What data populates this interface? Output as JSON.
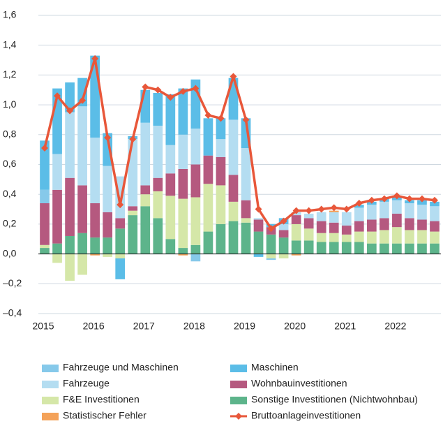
{
  "chart_data": {
    "type": "bar",
    "categories": [
      "2015",
      null,
      null,
      null,
      "2016",
      null,
      null,
      null,
      "2017",
      null,
      null,
      null,
      "2018",
      null,
      null,
      null,
      "2019",
      null,
      null,
      null,
      "2020",
      null,
      null,
      null,
      "2021",
      null,
      null,
      null,
      "2022",
      null,
      null,
      null
    ],
    "stacked": true,
    "series": [
      {
        "name": "Sonstige Investitionen (Nichtwohnbau)",
        "color": "#5db48b",
        "values": [
          0.04,
          0.07,
          0.12,
          0.14,
          0.11,
          0.11,
          0.17,
          0.26,
          0.32,
          0.24,
          0.1,
          0.04,
          0.06,
          0.15,
          0.2,
          0.22,
          0.21,
          0.15,
          0.13,
          0.11,
          0.09,
          0.09,
          0.08,
          0.08,
          0.08,
          0.08,
          0.07,
          0.07,
          0.07,
          0.07,
          0.07,
          0.07
        ]
      },
      {
        "name": "F&E Investitionen",
        "color": "#d5e7a8",
        "values": [
          0.02,
          -0.06,
          -0.18,
          -0.14,
          0,
          -0.02,
          -0.03,
          0.03,
          0.08,
          0.18,
          0.29,
          0.33,
          0.32,
          0.32,
          0.26,
          0.13,
          0.03,
          0,
          -0.03,
          -0.03,
          0.11,
          0.08,
          0.06,
          0.06,
          0.05,
          0.07,
          0.08,
          0.09,
          0.11,
          0.09,
          0.09,
          0.08
        ]
      },
      {
        "name": "Wohnbauinvestitionen",
        "color": "#b5597f",
        "values": [
          0.28,
          0.36,
          0.39,
          0.32,
          0.23,
          0.17,
          0.07,
          0.03,
          0.06,
          0.09,
          0.15,
          0.2,
          0.22,
          0.19,
          0.19,
          0.18,
          0.12,
          0.08,
          0.05,
          0.05,
          0.06,
          0.07,
          0.08,
          0.07,
          0.06,
          0.07,
          0.08,
          0.08,
          0.09,
          0.08,
          0.07,
          0.07
        ]
      },
      {
        "name": "Fahrzeuge",
        "color": "#b4ddf1",
        "values": [
          0,
          0.24,
          0.44,
          0.53,
          0.44,
          0.31,
          0.28,
          0.45,
          0.42,
          0.35,
          0.19,
          0.23,
          0.24,
          0,
          0.12,
          0.37,
          0.35,
          0.01,
          0,
          0.04,
          0.02,
          0.03,
          0.06,
          0.07,
          0.09,
          0.09,
          0.1,
          0.11,
          0.09,
          0.1,
          0.1,
          0.1
        ]
      },
      {
        "name": "Fahrzeuge und Maschinen",
        "color": "#86c9ea",
        "values": [
          0.09,
          0,
          0,
          0,
          0,
          0,
          0,
          0,
          0,
          0,
          0,
          0,
          -0.05,
          0,
          0,
          0,
          0,
          0,
          -0.01,
          0,
          0,
          0,
          0,
          0,
          0,
          0,
          0,
          0,
          0,
          0,
          0,
          0
        ]
      },
      {
        "name": "Maschinen",
        "color": "#5bbde7",
        "values": [
          0.33,
          0.44,
          0.2,
          0.19,
          0.55,
          0.22,
          -0.14,
          0.02,
          0.22,
          0.22,
          0.34,
          0.31,
          0.33,
          0.25,
          0.14,
          0.28,
          0.2,
          -0.02,
          0.02,
          0.04,
          0,
          0,
          0,
          0,
          0,
          0.02,
          0.02,
          0.02,
          0.03,
          0.02,
          0.03,
          0.03
        ]
      },
      {
        "name": "Statistischer Fehler",
        "color": "#f4a259",
        "values": [
          0,
          0,
          0,
          0,
          -0.01,
          0,
          0,
          0,
          0,
          0,
          0,
          -0.01,
          0,
          0,
          0,
          0,
          0,
          0,
          0,
          0,
          -0.01,
          0,
          0,
          0.01,
          0,
          0,
          0,
          0,
          0,
          0,
          0,
          0
        ]
      }
    ],
    "line": {
      "name": "Bruttoanlageinvestitionen",
      "color": "#e8573a",
      "values": [
        0.71,
        1.06,
        0.96,
        1.03,
        1.31,
        0.78,
        0.33,
        0.77,
        1.12,
        1.1,
        1.05,
        1.09,
        1.11,
        0.93,
        0.91,
        1.19,
        0.9,
        0.3,
        0.17,
        0.22,
        0.29,
        0.29,
        0.3,
        0.31,
        0.3,
        0.34,
        0.36,
        0.37,
        0.39,
        0.37,
        0.37,
        0.36
      ]
    },
    "ylim": [
      -0.4,
      1.6
    ],
    "yticks": [
      {
        "value": -0.4,
        "label": "–0,4"
      },
      {
        "value": -0.2,
        "label": "–0,2"
      },
      {
        "value": 0,
        "label": "0,0"
      },
      {
        "value": 0.2,
        "label": "0,2"
      },
      {
        "value": 0.4,
        "label": "0,4"
      },
      {
        "value": 0.6,
        "label": "0,6"
      },
      {
        "value": 0.8,
        "label": "0,8"
      },
      {
        "value": 1.0,
        "label": "1,0"
      },
      {
        "value": 1.2,
        "label": "1,2"
      },
      {
        "value": 1.4,
        "label": "1,4"
      },
      {
        "value": 1.6,
        "label": "1,6"
      }
    ],
    "grid": true
  }
}
